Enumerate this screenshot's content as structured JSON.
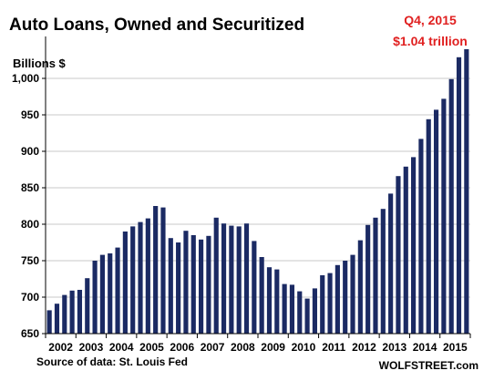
{
  "chart_data": {
    "type": "bar",
    "title": "Auto Loans, Owned and Securitized",
    "ylabel": "Billions $",
    "callout": {
      "line1": "Q4, 2015",
      "line2": "$1.04 trillion"
    },
    "source": "Source of data: St. Louis Fed",
    "watermark": "WOLFSTREET.com",
    "ylim": [
      650,
      1045
    ],
    "yticks": [
      650,
      700,
      750,
      800,
      850,
      900,
      950,
      1000
    ],
    "ytick_labels": [
      "650",
      "700",
      "750",
      "800",
      "850",
      "900",
      "950",
      "1,000"
    ],
    "year_labels": [
      "2002",
      "2003",
      "2004",
      "2005",
      "2006",
      "2007",
      "2008",
      "2009",
      "2010",
      "2011",
      "2012",
      "2013",
      "2014",
      "2015"
    ],
    "start_year": 2002,
    "values": [
      682,
      691,
      703,
      709,
      710,
      726,
      750,
      758,
      760,
      768,
      790,
      797,
      803,
      808,
      825,
      823,
      781,
      775,
      791,
      785,
      779,
      784,
      809,
      801,
      798,
      797,
      801,
      777,
      755,
      741,
      738,
      718,
      717,
      708,
      698,
      712,
      730,
      733,
      744,
      750,
      758,
      778,
      799,
      809,
      821,
      842,
      866,
      879,
      892,
      917,
      944,
      957,
      972,
      999,
      1029,
      1040
    ],
    "bar_color": "#1b2a63",
    "grid": true,
    "callout_color": "#e02020"
  }
}
